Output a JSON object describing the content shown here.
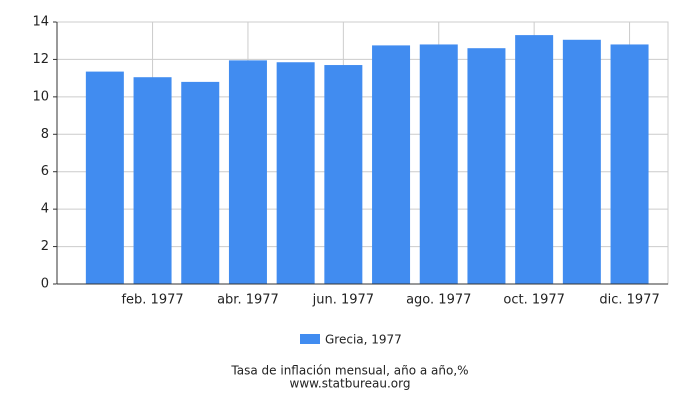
{
  "chart_data": {
    "type": "bar",
    "title": "Tasa de inflación mensual, año a año,%",
    "source": "www.statbureau.org",
    "categories": [
      null,
      "feb. 1977",
      null,
      "abr. 1977",
      null,
      "jun. 1977",
      null,
      "ago. 1977",
      null,
      "oct. 1977",
      null,
      "dic. 1977"
    ],
    "series": [
      {
        "name": "Grecia, 1977",
        "color": "#418cf0",
        "values": [
          11.35,
          11.05,
          10.8,
          11.95,
          11.85,
          11.7,
          12.75,
          12.8,
          12.6,
          13.3,
          13.05,
          12.8
        ]
      }
    ],
    "ylim": [
      0,
      14
    ],
    "yticks": [
      0,
      2,
      4,
      6,
      8,
      10,
      12,
      14
    ],
    "grid": true
  }
}
